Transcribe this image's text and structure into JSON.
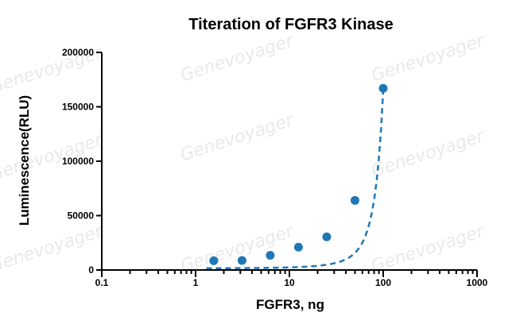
{
  "watermark": "Genevoyager",
  "chart_data": {
    "type": "scatter",
    "title": "Titeration of FGFR3 Kinase",
    "xlabel": "FGFR3, ng",
    "ylabel": "Luminescence(RLU)",
    "xscale": "log",
    "xlim": [
      0.1,
      1000
    ],
    "ylim": [
      0,
      200000
    ],
    "x_ticks": [
      0.1,
      1,
      10,
      100,
      1000
    ],
    "x_tick_labels": [
      "0.1",
      "1",
      "10",
      "100",
      "1000"
    ],
    "y_ticks": [
      0,
      50000,
      100000,
      150000,
      200000
    ],
    "y_tick_labels": [
      "0",
      "50000",
      "100000",
      "150000",
      "200000"
    ],
    "grid": false,
    "series": [
      {
        "x": [
          1.5625,
          3.125,
          6.25,
          12.5,
          25,
          50,
          100
        ],
        "y": [
          8500,
          8800,
          13500,
          21000,
          30500,
          64000,
          167000
        ],
        "color": "#1f78b4",
        "fit": "dashed-curve"
      }
    ]
  }
}
